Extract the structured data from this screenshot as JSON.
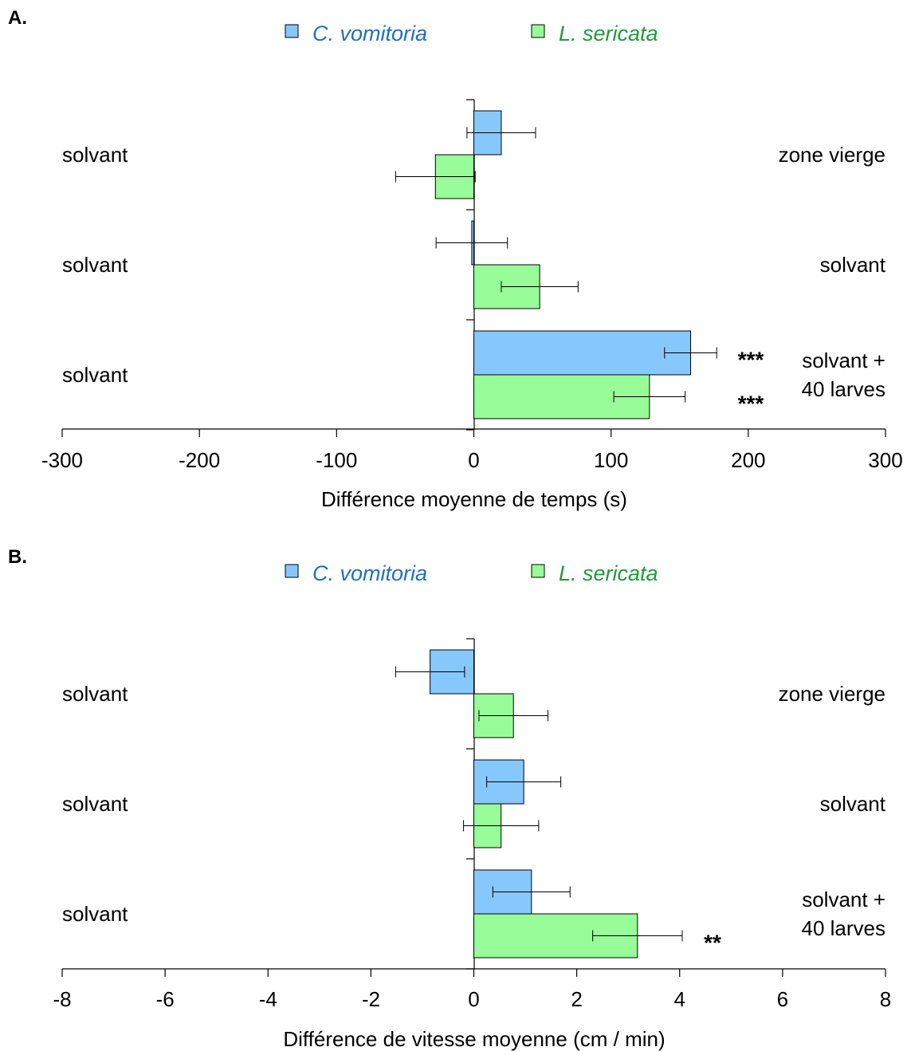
{
  "chart_data": [
    {
      "type": "bar",
      "orientation": "horizontal",
      "panel_label": "A.",
      "legend": [
        {
          "name": "C. vomitoria",
          "color": "#87c8fc",
          "text_color": "#1f6fc2"
        },
        {
          "name": "L. sericata",
          "color": "#98fc98",
          "text_color": "#1f9a3a"
        }
      ],
      "legend_placement": "top",
      "groups": [
        {
          "left_label": "solvant",
          "right_label_lines": [
            "zone vierge"
          ]
        },
        {
          "left_label": "solvant",
          "right_label_lines": [
            "solvant"
          ]
        },
        {
          "left_label": "solvant",
          "right_label_lines": [
            "solvant +",
            "40 larves"
          ]
        }
      ],
      "series": [
        {
          "name": "C. vomitoria",
          "values": [
            20,
            -1.5,
            158
          ],
          "errors": [
            25,
            26,
            19
          ],
          "significance": [
            "",
            "",
            "***"
          ]
        },
        {
          "name": "L. sericata",
          "values": [
            -28,
            48,
            128
          ],
          "errors": [
            29,
            28,
            26
          ],
          "significance": [
            "",
            "",
            "***"
          ]
        }
      ],
      "xlim": [
        -300,
        300
      ],
      "xticks": [
        -300,
        -200,
        -100,
        0,
        100,
        200,
        300
      ],
      "tick_labels": [
        "-300",
        "-200",
        "-100",
        "0",
        "100",
        "200",
        "300"
      ],
      "xlabel": "Différence moyenne de temps (s)",
      "grid": false
    },
    {
      "type": "bar",
      "orientation": "horizontal",
      "panel_label": "B.",
      "legend": [
        {
          "name": "C. vomitoria",
          "color": "#87c8fc",
          "text_color": "#1f6fc2"
        },
        {
          "name": "L. sericata",
          "color": "#98fc98",
          "text_color": "#1f9a3a"
        }
      ],
      "legend_placement": "top",
      "groups": [
        {
          "left_label": "solvant",
          "right_label_lines": [
            "zone vierge"
          ]
        },
        {
          "left_label": "solvant",
          "right_label_lines": [
            "solvant"
          ]
        },
        {
          "left_label": "solvant",
          "right_label_lines": [
            "solvant +",
            "40 larves"
          ]
        }
      ],
      "series": [
        {
          "name": "C. vomitoria",
          "values": [
            -0.85,
            0.97,
            1.12
          ],
          "errors": [
            0.67,
            0.72,
            0.75
          ],
          "significance": [
            "",
            "",
            ""
          ]
        },
        {
          "name": "L. sericata",
          "values": [
            0.77,
            0.53,
            3.18
          ],
          "errors": [
            0.67,
            0.73,
            0.87
          ],
          "significance": [
            "",
            "",
            "**"
          ]
        }
      ],
      "xlim": [
        -8,
        8
      ],
      "xticks": [
        -8,
        -6,
        -4,
        -2,
        0,
        2,
        4,
        6,
        8
      ],
      "tick_labels": [
        "-8",
        "-6",
        "-4",
        "-2",
        "0",
        "2",
        "4",
        "6",
        "8"
      ],
      "xlabel": "Différence de vitesse moyenne (cm / min)",
      "grid": false
    }
  ]
}
